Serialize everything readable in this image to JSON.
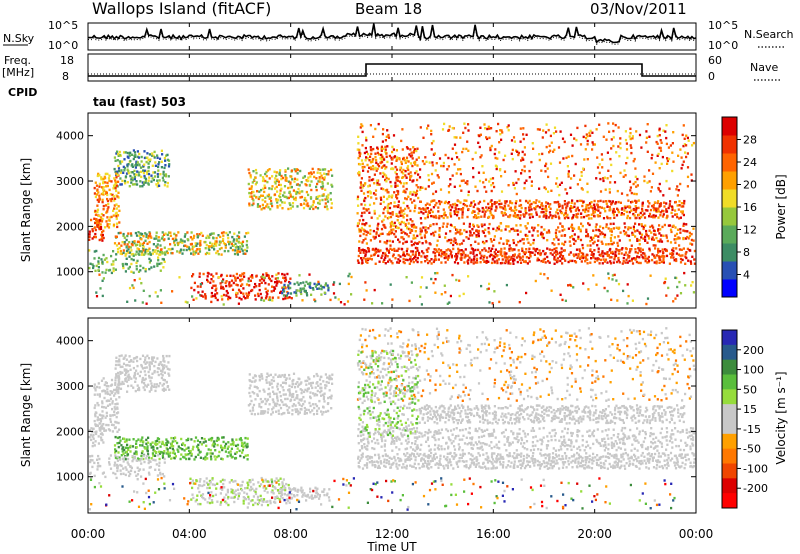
{
  "header": {
    "site": "Wallops Island (fitACF)",
    "beam": "Beam 18",
    "date": "03/Nov/2011",
    "cpid": "tau (fast) 503"
  },
  "left_labels": {
    "nsky": "N.Sky",
    "freq": "Freq.",
    "freq_unit": "[MHz]",
    "cpid": "CPID"
  },
  "right_labels": {
    "nsearch": "N.Search",
    "nave": "Nave"
  },
  "colors": {
    "power": [
      "#0000ff",
      "#2850b4",
      "#3c8c64",
      "#5aaa5a",
      "#96c83c",
      "#f0dc28",
      "#ffa000",
      "#ff6400",
      "#f03200",
      "#dc0000"
    ],
    "velocity": [
      "#2828b4",
      "#285a8c",
      "#3c8c3c",
      "#5abe3c",
      "#96dc3c",
      "#c8c8c8",
      "#c8c8c8",
      "#ffa000",
      "#ff7800",
      "#f04600",
      "#dc0000",
      "#ff0000"
    ]
  },
  "chart_data": [
    {
      "type": "line",
      "name": "noise",
      "ylabel_left": "N.Sky",
      "ylabel_right": "N.Search",
      "yticks_left": [
        "10^5",
        "10^0"
      ],
      "yticks_right": [
        "10^5",
        "10^0"
      ],
      "x": [
        "00:00",
        "04:00",
        "08:00",
        "12:00",
        "16:00",
        "20:00",
        "00:00"
      ]
    },
    {
      "type": "line",
      "name": "frequency",
      "ylabel_left": "Freq. [MHz]",
      "ylabel_right": "Nave",
      "yticks_left": [
        "18",
        "8"
      ],
      "yticks_right": [
        "60",
        "0"
      ],
      "step_high_from": "12:00",
      "step_high_to": "22:00"
    },
    {
      "type": "heatmap",
      "name": "power",
      "ylabel": "Slant Range [km]",
      "yticks": [
        "1000",
        "2000",
        "3000",
        "4000"
      ],
      "ylim": [
        200,
        4500
      ],
      "xlim": [
        "00:00",
        "24:00"
      ],
      "colorbar_label": "Power [dB]",
      "colorbar_ticks": [
        "4",
        "8",
        "12",
        "16",
        "20",
        "24",
        "28"
      ],
      "colorbar_range": [
        0,
        30
      ]
    },
    {
      "type": "heatmap",
      "name": "velocity",
      "ylabel": "Slant Range [km]",
      "yticks": [
        "1000",
        "2000",
        "3000",
        "4000"
      ],
      "ylim": [
        200,
        4500
      ],
      "xlim": [
        "00:00",
        "24:00"
      ],
      "colorbar_label": "Velocity [m s⁻¹]",
      "colorbar_ticks": [
        "200",
        "100",
        "50",
        "15",
        "-15",
        "-50",
        "-100",
        "-200"
      ],
      "xlabel": "Time UT",
      "xticks": [
        "00:00",
        "04:00",
        "08:00",
        "12:00",
        "16:00",
        "20:00",
        "00:00"
      ]
    }
  ]
}
